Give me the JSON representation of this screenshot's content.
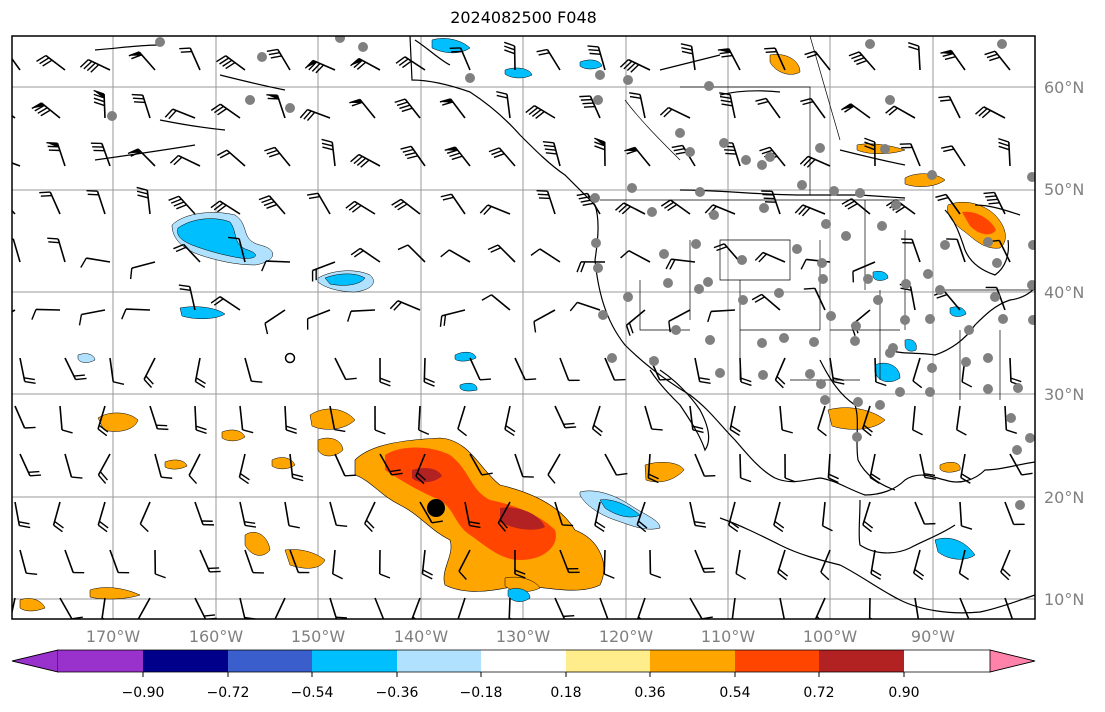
{
  "title": "2024082500 F048",
  "map": {
    "lon_labels": [
      "170°W",
      "160°W",
      "150°W",
      "140°W",
      "130°W",
      "120°W",
      "110°W",
      "100°W",
      "90°W"
    ],
    "lat_labels": [
      "60°N",
      "50°N",
      "40°N",
      "30°N",
      "20°N",
      "10°N"
    ],
    "storm_marker": "tropical cyclone position"
  },
  "colorbar": {
    "labels": [
      "−0.90",
      "−0.72",
      "−0.54",
      "−0.36",
      "−0.18",
      "0.18",
      "0.36",
      "0.54",
      "0.72",
      "0.90"
    ],
    "colors": [
      "#9932cc",
      "#00008b",
      "#3a5fcd",
      "#00bfff",
      "#b0e2ff",
      "#ffffff",
      "#ffec8b",
      "#ffa500",
      "#ff4500",
      "#b22222",
      "#ff82ab"
    ]
  }
}
